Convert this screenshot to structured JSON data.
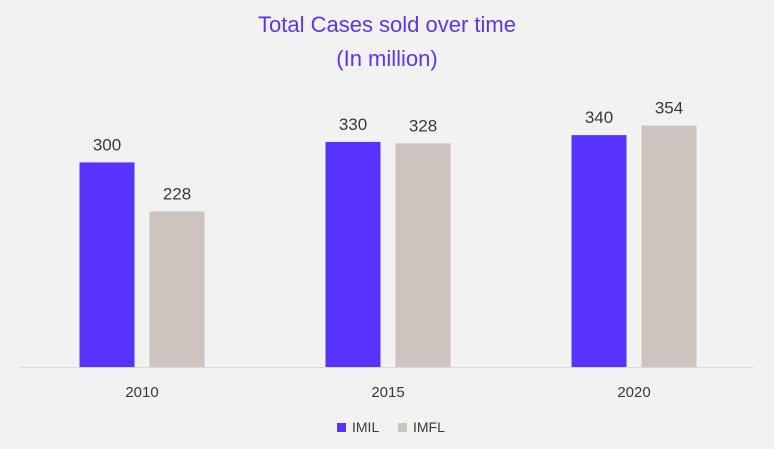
{
  "chart_data": {
    "type": "bar",
    "title": "Total Cases sold over time",
    "subtitle": "(In million)",
    "categories": [
      "2010",
      "2015",
      "2020"
    ],
    "series": [
      {
        "name": "IMIL",
        "values": [
          300,
          330,
          340
        ],
        "color": "#5733fb"
      },
      {
        "name": "IMFL",
        "values": [
          228,
          328,
          354
        ],
        "color": "#cdc4bf"
      }
    ],
    "ylim": [
      0,
      400
    ],
    "grid": false,
    "legend_position": "bottom-center",
    "data_labels": true
  },
  "style": {
    "title_color": "#5b35f0",
    "axis_color": "#d9d9d9"
  }
}
